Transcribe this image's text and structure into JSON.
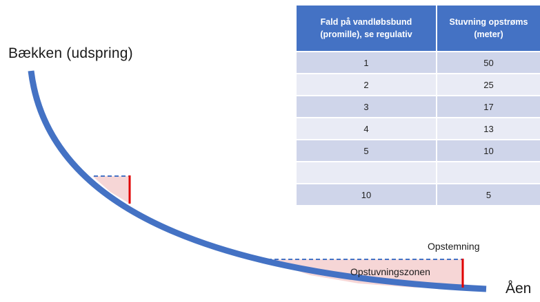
{
  "labels": {
    "source": "Bækken (udspring)",
    "river": "Åen",
    "dam": "Opstemning",
    "zone": "Opstuvningszonen"
  },
  "table": {
    "headers": [
      [
        "Fald på vandløbsbund",
        "(promille), se regulativ"
      ],
      [
        "Stuvning opstrøms",
        "(meter)"
      ]
    ],
    "rows": [
      [
        "1",
        "50"
      ],
      [
        "2",
        "25"
      ],
      [
        "3",
        "17"
      ],
      [
        "4",
        "13"
      ],
      [
        "5",
        "10"
      ],
      [
        "",
        ""
      ],
      [
        "10",
        "5"
      ]
    ]
  },
  "colors": {
    "stream": "#4472c4",
    "header": "#4472c4",
    "row_dark": "#cfd5ea",
    "row_light": "#e9ebf5",
    "dam_marker": "#e00000",
    "zone_fill": "#f6d6d6",
    "water_line": "#4472c4"
  }
}
